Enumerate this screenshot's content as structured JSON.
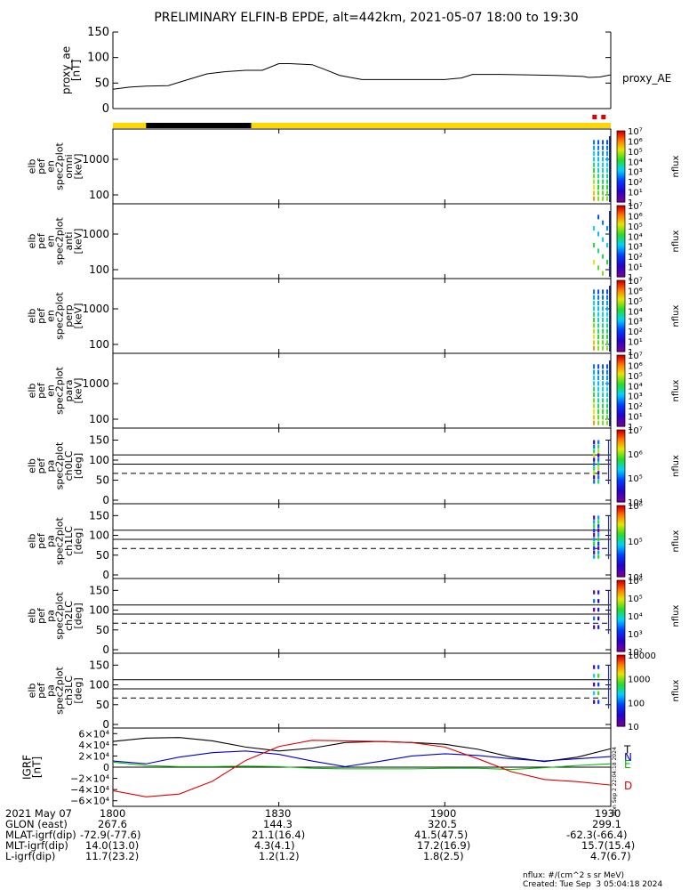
{
  "title": "PRELIMINARY ELFIN-B EPDE, alt=442km, 2021-05-07 18:00 to 19:30",
  "chart_data": [
    {
      "type": "line",
      "id": "proxy_ae",
      "ylabel": [
        "proxy_ae",
        "[nT]"
      ],
      "series_label": "proxy_AE",
      "ylim": [
        0,
        150
      ],
      "yticks": [
        "0",
        "50",
        "100",
        "150"
      ],
      "x": [
        1800,
        1803,
        1806,
        1810,
        1813,
        1817,
        1820,
        1824,
        1827,
        1830,
        1832,
        1836,
        1838,
        1841,
        1845,
        1850,
        1855,
        1900,
        1903,
        1905,
        1910,
        1915,
        1920,
        1925,
        1926,
        1928,
        1930
      ],
      "values": [
        38,
        42,
        44,
        45,
        55,
        68,
        72,
        75,
        75,
        88,
        88,
        86,
        78,
        65,
        57,
        57,
        57,
        57,
        60,
        67,
        67,
        66,
        65,
        63,
        61,
        62,
        66
      ]
    },
    {
      "type": "bar",
      "id": "status_bar",
      "segments": [
        {
          "from": 1800,
          "to": 1806,
          "color": "#ffd700"
        },
        {
          "from": 1806,
          "to": 1825,
          "color": "#000000"
        },
        {
          "from": 1825,
          "to": 1930,
          "color": "#ffd700"
        }
      ],
      "markers": [
        1927,
        1928.6
      ],
      "marker_color": "#e00000"
    },
    {
      "type": "heatmap",
      "id": "en_omni",
      "ylabel": [
        "elb",
        "pef",
        "en",
        "spec2plot",
        "omni",
        "[keV]"
      ],
      "scale": "log",
      "yticks": [
        "100",
        "1000"
      ],
      "colorbar": {
        "label": "nflux",
        "ticks": [
          "1",
          "10¹",
          "10²",
          "10³",
          "10⁴",
          "10⁵",
          "10⁶",
          "10⁷"
        ]
      }
    },
    {
      "type": "heatmap",
      "id": "en_anti",
      "ylabel": [
        "elb",
        "pef",
        "en",
        "spec2plot",
        "anti",
        "[keV]"
      ],
      "scale": "log",
      "yticks": [
        "100",
        "1000"
      ],
      "colorbar": {
        "label": "nflux",
        "ticks": [
          "1",
          "10¹",
          "10²",
          "10³",
          "10⁴",
          "10⁵",
          "10⁶",
          "10⁷"
        ]
      }
    },
    {
      "type": "heatmap",
      "id": "en_perp",
      "ylabel": [
        "elb",
        "pef",
        "en",
        "spec2plot",
        "perp",
        "[keV]"
      ],
      "scale": "log",
      "yticks": [
        "100",
        "1000"
      ],
      "colorbar": {
        "label": "nflux",
        "ticks": [
          "1",
          "10¹",
          "10²",
          "10³",
          "10⁴",
          "10⁵",
          "10⁶",
          "10⁷"
        ]
      }
    },
    {
      "type": "heatmap",
      "id": "en_para",
      "ylabel": [
        "elb",
        "pef",
        "en",
        "spec2plot",
        "para",
        "[keV]"
      ],
      "scale": "log",
      "yticks": [
        "100",
        "1000"
      ],
      "colorbar": {
        "label": "nflux",
        "ticks": [
          "1",
          "10¹",
          "10²",
          "10³",
          "10⁴",
          "10⁵",
          "10⁶",
          "10⁷"
        ]
      }
    },
    {
      "type": "heatmap",
      "id": "pa_ch0LC",
      "ylabel": [
        "elb",
        "pef",
        "pa",
        "spec2plot",
        "ch0LC",
        "[deg]"
      ],
      "ylim": [
        0,
        180
      ],
      "yticks": [
        "0",
        "50",
        "100",
        "150"
      ],
      "lines_solid": [
        113,
        90
      ],
      "line_dashed": 67,
      "colorbar": {
        "label": "nflux",
        "ticks": [
          "10⁴",
          "10⁵",
          "10⁶",
          "10⁷"
        ]
      }
    },
    {
      "type": "heatmap",
      "id": "pa_ch1LC",
      "ylabel": [
        "elb",
        "pef",
        "pa",
        "spec2plot",
        "ch1LC",
        "[deg]"
      ],
      "ylim": [
        0,
        180
      ],
      "yticks": [
        "0",
        "50",
        "100",
        "150"
      ],
      "lines_solid": [
        113,
        90
      ],
      "line_dashed": 67,
      "colorbar": {
        "label": "nflux",
        "ticks": [
          "10⁴",
          "10⁵",
          "10⁶"
        ]
      }
    },
    {
      "type": "heatmap",
      "id": "pa_ch2LC",
      "ylabel": [
        "elb",
        "pef",
        "pa",
        "spec2plot",
        "ch2LC",
        "[deg]"
      ],
      "ylim": [
        0,
        180
      ],
      "yticks": [
        "0",
        "50",
        "100",
        "150"
      ],
      "lines_solid": [
        113,
        90
      ],
      "line_dashed": 67,
      "colorbar": {
        "label": "nflux",
        "ticks": [
          "10²",
          "10³",
          "10⁴",
          "10⁵",
          "10⁶"
        ]
      }
    },
    {
      "type": "heatmap",
      "id": "pa_ch3LC",
      "ylabel": [
        "elb",
        "pef",
        "pa",
        "spec2plot",
        "ch3LC",
        "[deg]"
      ],
      "ylim": [
        0,
        180
      ],
      "yticks": [
        "0",
        "50",
        "100",
        "150"
      ],
      "lines_solid": [
        113,
        90
      ],
      "line_dashed": 67,
      "colorbar": {
        "label": "nflux",
        "ticks": [
          "10",
          "100",
          "1000",
          "10000"
        ]
      }
    },
    {
      "type": "line",
      "id": "igrf",
      "ylabel": [
        "IGRF",
        "[nT]"
      ],
      "ylim": [
        -70000,
        70000
      ],
      "yticks": [
        "−6×10⁴",
        "−4×10⁴",
        "−2×10⁴",
        "0",
        "2×10⁴",
        "4×10⁴",
        "6×10⁴"
      ],
      "series": [
        {
          "name": "T",
          "color": "#000000",
          "x": [
            1800,
            1806,
            1812,
            1818,
            1824,
            1830,
            1836,
            1842,
            1848,
            1854,
            1900,
            1906,
            1912,
            1918,
            1924,
            1930
          ],
          "values": [
            46000,
            52000,
            53000,
            47000,
            36000,
            29000,
            34000,
            44000,
            46000,
            44000,
            41000,
            32000,
            18000,
            10000,
            18000,
            33000
          ]
        },
        {
          "name": "N",
          "color": "#0000cc",
          "x": [
            1800,
            1806,
            1812,
            1818,
            1824,
            1830,
            1836,
            1842,
            1848,
            1854,
            1900,
            1906,
            1912,
            1918,
            1924,
            1930
          ],
          "values": [
            11000,
            6000,
            18000,
            26000,
            29000,
            23000,
            11000,
            1000,
            10000,
            20000,
            24000,
            21000,
            15000,
            11000,
            15000,
            19000
          ]
        },
        {
          "name": "E",
          "color": "#00bb00",
          "x": [
            1800,
            1806,
            1812,
            1818,
            1824,
            1830,
            1836,
            1842,
            1848,
            1854,
            1900,
            1906,
            1912,
            1918,
            1924,
            1930
          ],
          "values": [
            9000,
            3000,
            1000,
            1000,
            2000,
            1000,
            -2000,
            -3000,
            -3000,
            -3000,
            -2000,
            -2000,
            -4000,
            -1000,
            3000,
            6000
          ]
        },
        {
          "name": "D",
          "color": "#dd0000",
          "x": [
            1800,
            1806,
            1812,
            1818,
            1824,
            1830,
            1836,
            1842,
            1848,
            1854,
            1900,
            1906,
            1912,
            1918,
            1924,
            1930
          ],
          "values": [
            -42000,
            -53000,
            -48000,
            -25000,
            12000,
            37000,
            48000,
            47000,
            46000,
            44000,
            36000,
            15000,
            -8000,
            -22000,
            -26000,
            -32000
          ]
        }
      ]
    }
  ],
  "time_axis": {
    "ticks": [
      "1800",
      "1830",
      "1900",
      "1930"
    ]
  },
  "ephemeris": {
    "rows": [
      {
        "label": "2021 May 07",
        "values": [
          "1800",
          "1830",
          "1900",
          "1930"
        ]
      },
      {
        "label": "GLON (east)",
        "values": [
          "267.6",
          "144.3",
          "320.5",
          "299.1"
        ]
      },
      {
        "label": "MLAT-igrf(dip)",
        "values": [
          "-72.9(-77.6)",
          "21.1(16.4)",
          "41.5(47.5)",
          "-62.3(-66.4)"
        ]
      },
      {
        "label": "MLT-igrf(dip)",
        "values": [
          "14.0(13.0)",
          "4.3(4.1)",
          "17.2(16.9)",
          "15.7(15.4)"
        ]
      },
      {
        "label": "L-igrf(dip)",
        "values": [
          "11.7(23.2)",
          "1.2(1.2)",
          "1.8(2.5)",
          "4.7(6.7)"
        ]
      }
    ]
  },
  "footer": {
    "units": "nflux: #/(cm^2 s sr MeV)",
    "created": "Created: Tue Sep  3 05:04:18 2024"
  },
  "timestamp_vertical": "Mon Sep  2 22:04:18 2024"
}
